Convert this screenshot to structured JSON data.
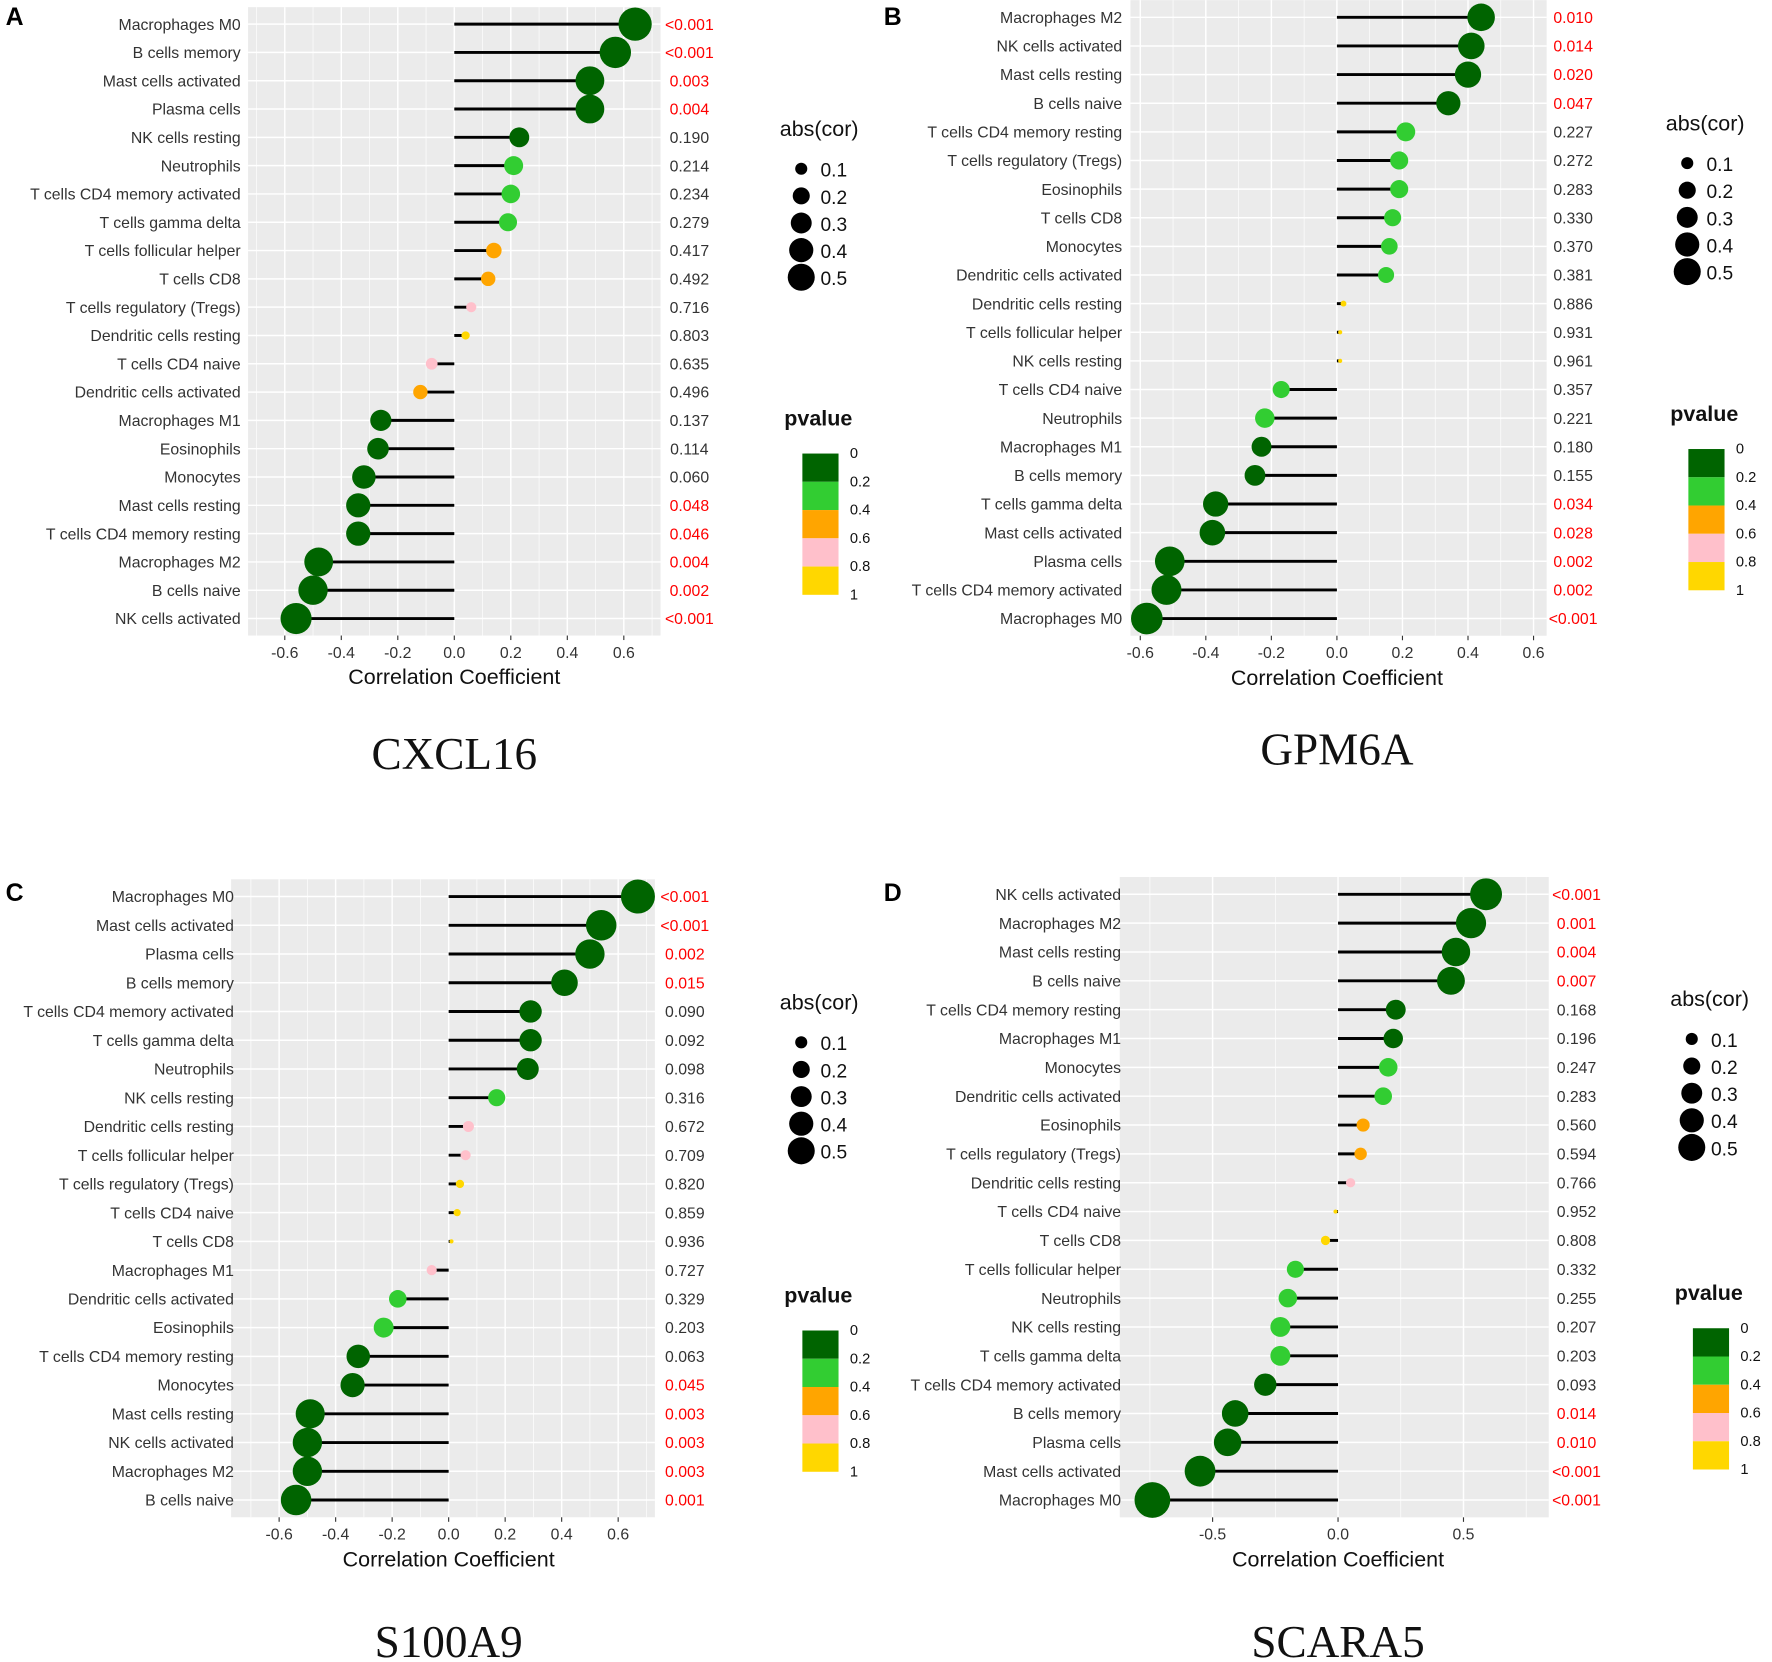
{
  "chart_data": [
    {
      "type": "lollipop",
      "panel_letter": "A",
      "title": "CXCL16",
      "xlabel": "Correlation Coefficient",
      "xticks": [
        "-0.6",
        "-0.4",
        "-0.2",
        "0.0",
        "0.2",
        "0.4",
        "0.6"
      ],
      "xtick_values": [
        -0.6,
        -0.4,
        -0.2,
        0,
        0.2,
        0.4,
        0.6
      ],
      "xlim": [
        -0.73,
        0.73
      ],
      "categories": [
        "Macrophages M0",
        "B cells memory",
        "Mast cells activated",
        "Plasma cells",
        "NK cells resting",
        "Neutrophils",
        "T cells CD4 memory activated",
        "T cells gamma delta",
        "T cells follicular helper",
        "T cells CD8",
        "T cells regulatory (Tregs)",
        "Dendritic cells resting",
        "T cells CD4 naive",
        "Dendritic cells activated",
        "Macrophages M1",
        "Eosinophils",
        "Monocytes",
        "Mast cells resting",
        "T cells CD4 memory resting",
        "Macrophages M2",
        "B cells naive",
        "NK cells activated"
      ],
      "values": [
        0.64,
        0.57,
        0.48,
        0.48,
        0.23,
        0.21,
        0.2,
        0.19,
        0.14,
        0.12,
        0.06,
        0.04,
        -0.08,
        -0.12,
        -0.26,
        -0.27,
        -0.32,
        -0.34,
        -0.34,
        -0.48,
        -0.5,
        -0.56
      ],
      "pvalues": [
        "<0.001",
        "<0.001",
        "0.003",
        "0.004",
        "0.190",
        "0.214",
        "0.234",
        "0.279",
        "0.417",
        "0.492",
        "0.716",
        "0.803",
        "0.635",
        "0.496",
        "0.137",
        "0.114",
        "0.060",
        "0.048",
        "0.046",
        "0.004",
        "0.002",
        "<0.001"
      ]
    },
    {
      "type": "lollipop",
      "panel_letter": "B",
      "title": "GPM6A",
      "xlabel": "Correlation Coefficient",
      "xticks": [
        "-0.6",
        "-0.4",
        "-0.2",
        "0.0",
        "0.2",
        "0.4",
        "0.6"
      ],
      "xtick_values": [
        -0.6,
        -0.4,
        -0.2,
        0,
        0.2,
        0.4,
        0.6
      ],
      "xlim": [
        -0.63,
        0.64
      ],
      "categories": [
        "Macrophages M2",
        "NK cells activated",
        "Mast cells resting",
        "B cells naive",
        "T cells CD4 memory resting",
        "T cells regulatory (Tregs)",
        "Eosinophils",
        "T cells CD8",
        "Monocytes",
        "Dendritic cells activated",
        "Dendritic cells resting",
        "T cells follicular helper",
        "NK cells resting",
        "T cells CD4 naive",
        "Neutrophils",
        "Macrophages M1",
        "B cells memory",
        "T cells gamma delta",
        "Mast cells activated",
        "Plasma cells",
        "T cells CD4 memory activated",
        "Macrophages M0"
      ],
      "values": [
        0.44,
        0.41,
        0.4,
        0.34,
        0.21,
        0.19,
        0.19,
        0.17,
        0.16,
        0.15,
        0.02,
        0.01,
        0.01,
        -0.17,
        -0.22,
        -0.23,
        -0.25,
        -0.37,
        -0.38,
        -0.51,
        -0.52,
        -0.58
      ],
      "pvalues": [
        "0.010",
        "0.014",
        "0.020",
        "0.047",
        "0.227",
        "0.272",
        "0.283",
        "0.330",
        "0.370",
        "0.381",
        "0.886",
        "0.931",
        "0.961",
        "0.357",
        "0.221",
        "0.180",
        "0.155",
        "0.034",
        "0.028",
        "0.002",
        "0.002",
        "<0.001"
      ]
    },
    {
      "type": "lollipop",
      "panel_letter": "C",
      "title": "S100A9",
      "xlabel": "Correlation Coefficient",
      "xticks": [
        "-0.6",
        "-0.4",
        "-0.2",
        "0.0",
        "0.2",
        "0.4",
        "0.6"
      ],
      "xtick_values": [
        -0.6,
        -0.4,
        -0.2,
        0,
        0.2,
        0.4,
        0.6
      ],
      "xlim": [
        -0.77,
        0.73
      ],
      "categories": [
        "Macrophages M0",
        "Mast cells activated",
        "Plasma cells",
        "B cells memory",
        "T cells CD4 memory activated",
        "T cells gamma delta",
        "Neutrophils",
        "NK cells resting",
        "Dendritic cells resting",
        "T cells follicular helper",
        "T cells regulatory (Tregs)",
        "T cells CD4 naive",
        "T cells CD8",
        "Macrophages M1",
        "Dendritic cells activated",
        "Eosinophils",
        "T cells CD4 memory resting",
        "Monocytes",
        "Mast cells resting",
        "NK cells activated",
        "Macrophages M2",
        "B cells naive"
      ],
      "values": [
        0.67,
        0.54,
        0.5,
        0.41,
        0.29,
        0.29,
        0.28,
        0.17,
        0.07,
        0.06,
        0.04,
        0.03,
        0.01,
        -0.06,
        -0.18,
        -0.23,
        -0.32,
        -0.34,
        -0.49,
        -0.5,
        -0.5,
        -0.54
      ],
      "pvalues": [
        "<0.001",
        "<0.001",
        "0.002",
        "0.015",
        "0.090",
        "0.092",
        "0.098",
        "0.316",
        "0.672",
        "0.709",
        "0.820",
        "0.859",
        "0.936",
        "0.727",
        "0.329",
        "0.203",
        "0.063",
        "0.045",
        "0.003",
        "0.003",
        "0.003",
        "0.001"
      ]
    },
    {
      "type": "lollipop",
      "panel_letter": "D",
      "title": "SCARA5",
      "xlabel": "Correlation Coefficient",
      "xticks": [
        "-0.5",
        "0.0",
        "0.5"
      ],
      "xtick_values": [
        -0.5,
        0,
        0.5
      ],
      "xlim": [
        -0.87,
        0.84
      ],
      "categories": [
        "NK cells activated",
        "Macrophages M2",
        "Mast cells resting",
        "B cells naive",
        "T cells CD4 memory resting",
        "Macrophages M1",
        "Monocytes",
        "Dendritic cells activated",
        "Eosinophils",
        "T cells regulatory (Tregs)",
        "Dendritic cells resting",
        "T cells CD4 naive",
        "T cells CD8",
        "T cells follicular helper",
        "Neutrophils",
        "NK cells resting",
        "T cells gamma delta",
        "T cells CD4 memory activated",
        "B cells memory",
        "Plasma cells",
        "Mast cells activated",
        "Macrophages M0"
      ],
      "values": [
        0.59,
        0.53,
        0.47,
        0.45,
        0.23,
        0.22,
        0.2,
        0.18,
        0.1,
        0.09,
        0.05,
        -0.01,
        -0.05,
        -0.17,
        -0.2,
        -0.23,
        -0.23,
        -0.29,
        -0.41,
        -0.44,
        -0.55,
        -0.74
      ],
      "pvalues": [
        "<0.001",
        "0.001",
        "0.004",
        "0.007",
        "0.168",
        "0.196",
        "0.247",
        "0.283",
        "0.560",
        "0.594",
        "0.766",
        "0.952",
        "0.808",
        "0.332",
        "0.255",
        "0.207",
        "0.203",
        "0.093",
        "0.014",
        "0.010",
        "<0.001",
        "<0.001"
      ]
    }
  ],
  "legend": {
    "size_title": "abs(cor)",
    "size_labels": [
      "0.1",
      "0.2",
      "0.3",
      "0.4",
      "0.5"
    ],
    "size_values": [
      0.1,
      0.2,
      0.3,
      0.4,
      0.5
    ],
    "color_title": "pvalue",
    "color_labels": [
      "0",
      "0.2",
      "0.4",
      "0.6",
      "0.8",
      "1"
    ],
    "colors": [
      "#006400",
      "#32CD32",
      "#FFA500",
      "#FFC0CB",
      "#FFD700"
    ]
  },
  "significant_color": "#FF0000"
}
